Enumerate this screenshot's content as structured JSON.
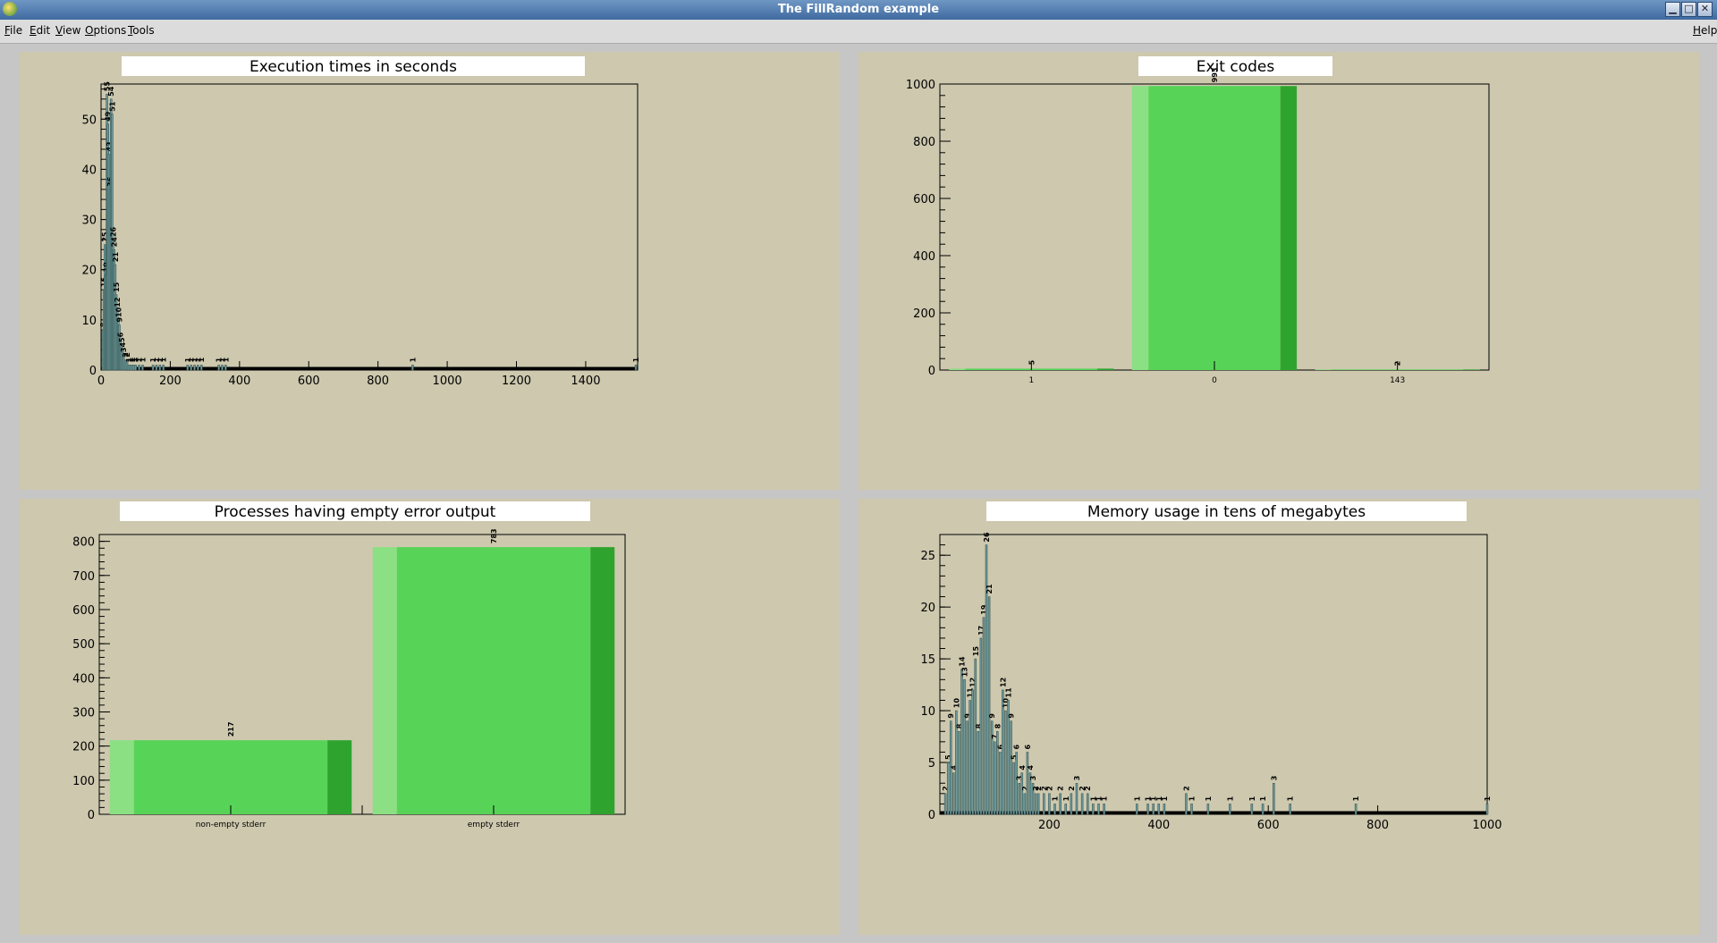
{
  "window": {
    "title": "The FillRandom example"
  },
  "menu": {
    "items": [
      "File",
      "Edit",
      "View",
      "Options",
      "Tools"
    ],
    "help": "Help"
  },
  "colors": {
    "panel_bg": "#cdc8ae",
    "hist_fill": "#6f9a9a",
    "bar_light": "#8be083",
    "bar_mid": "#57d457",
    "bar_dark": "#2ea42e"
  },
  "charts": [
    {
      "type": "bar",
      "title": "Execution times in seconds",
      "xlim": [
        0,
        1550
      ],
      "ylim": [
        0,
        57
      ],
      "x_ticks": [
        0,
        200,
        400,
        600,
        800,
        1000,
        1200,
        1400
      ],
      "y_ticks": [
        0,
        10,
        20,
        30,
        40,
        50
      ],
      "x": [
        5,
        8,
        11,
        14,
        17,
        20,
        23,
        26,
        29,
        32,
        35,
        38,
        41,
        44,
        47,
        50,
        53,
        56,
        59,
        62,
        65,
        70,
        75,
        80,
        85,
        90,
        95,
        100,
        110,
        120,
        150,
        160,
        170,
        180,
        250,
        260,
        270,
        280,
        290,
        340,
        350,
        360,
        900,
        1545
      ],
      "values": [
        8,
        16,
        25,
        19,
        55,
        49,
        43,
        36,
        54,
        51,
        26,
        24,
        21,
        15,
        12,
        10,
        9,
        6,
        5,
        4,
        3,
        2,
        2,
        1,
        1,
        1,
        1,
        1,
        1,
        1,
        1,
        1,
        1,
        1,
        1,
        1,
        1,
        1,
        1,
        1,
        1,
        1,
        1,
        1
      ]
    },
    {
      "type": "bar",
      "title": "Exit codes",
      "categories": [
        "1",
        "0",
        "143"
      ],
      "values": [
        5,
        993,
        2
      ],
      "ylim": [
        0,
        1000
      ],
      "y_ticks": [
        0,
        200,
        400,
        600,
        800,
        1000
      ]
    },
    {
      "type": "bar",
      "title": "Processes having empty error output",
      "categories": [
        "non-empty stderr",
        "empty stderr"
      ],
      "values": [
        217,
        783
      ],
      "ylim": [
        0,
        820
      ],
      "y_ticks": [
        0,
        100,
        200,
        300,
        400,
        500,
        600,
        700,
        800
      ]
    },
    {
      "type": "bar",
      "title": "Memory usage in tens of megabytes",
      "xlim": [
        0,
        1000
      ],
      "ylim": [
        0,
        27
      ],
      "x_ticks": [
        200,
        400,
        600,
        800,
        1000
      ],
      "y_ticks": [
        0,
        5,
        10,
        15,
        20,
        25
      ],
      "x": [
        10,
        15,
        20,
        25,
        30,
        35,
        40,
        45,
        50,
        55,
        60,
        65,
        70,
        75,
        80,
        85,
        90,
        95,
        100,
        105,
        110,
        115,
        120,
        125,
        130,
        135,
        140,
        145,
        150,
        155,
        160,
        165,
        170,
        175,
        180,
        190,
        200,
        210,
        220,
        230,
        240,
        250,
        260,
        270,
        280,
        290,
        300,
        360,
        380,
        390,
        400,
        410,
        450,
        460,
        490,
        530,
        570,
        590,
        610,
        640,
        760,
        1000
      ],
      "values": [
        2,
        5,
        9,
        4,
        10,
        8,
        14,
        13,
        9,
        11,
        12,
        15,
        8,
        17,
        19,
        26,
        21,
        9,
        7,
        8,
        6,
        12,
        10,
        11,
        9,
        5,
        6,
        3,
        4,
        2,
        6,
        4,
        3,
        2,
        2,
        2,
        2,
        1,
        2,
        1,
        2,
        3,
        2,
        2,
        1,
        1,
        1,
        1,
        1,
        1,
        1,
        1,
        2,
        1,
        1,
        1,
        1,
        1,
        3,
        1,
        1,
        1
      ]
    }
  ]
}
